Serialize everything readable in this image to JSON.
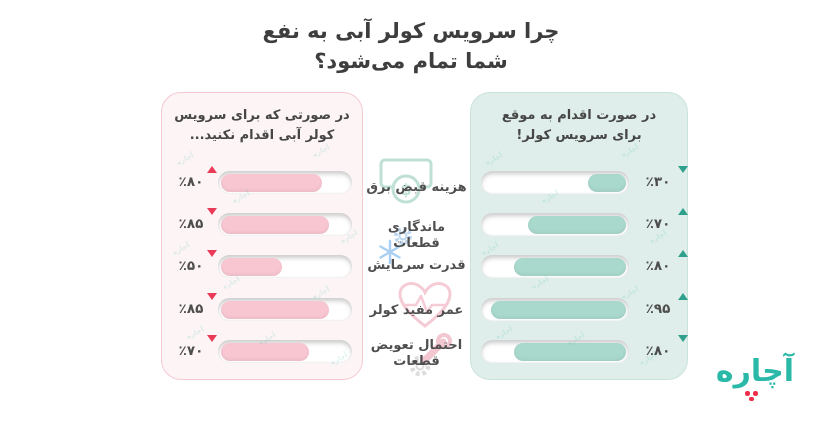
{
  "title": {
    "text": "چرا سرویس کولر آبی به نفع\nشما تمام می‌شود؟"
  },
  "left_panel": {
    "header": "در صورتی که برای سرویس\nکولر آبی اقدام نکنید...",
    "fill_color": "#F8C6D1",
    "background_color": "#FCF4F5",
    "border_color": "#F5C9D3",
    "arrow_color": "#E93A58",
    "rows": [
      {
        "label": "٪۸۰",
        "value": 80,
        "direction": "up"
      },
      {
        "label": "٪۸۵",
        "value": 85,
        "direction": "down"
      },
      {
        "label": "٪۵۰",
        "value": 50,
        "direction": "down"
      },
      {
        "label": "٪۸۵",
        "value": 85,
        "direction": "down"
      },
      {
        "label": "٪۷۰",
        "value": 70,
        "direction": "down"
      }
    ]
  },
  "right_panel": {
    "header": "در صورت اقدام به موقع\nبرای سرویس کولر!",
    "fill_color": "#A9D8CC",
    "background_color": "#DFEEEA",
    "border_color": "#C9E3DB",
    "arrow_color": "#2FA08D",
    "rows": [
      {
        "label": "٪۳۰",
        "value": 30,
        "direction": "down"
      },
      {
        "label": "٪۷۰",
        "value": 70,
        "direction": "up"
      },
      {
        "label": "٪۸۰",
        "value": 80,
        "direction": "up"
      },
      {
        "label": "٪۹۵",
        "value": 95,
        "direction": "up"
      },
      {
        "label": "٪۸۰",
        "value": 80,
        "direction": "down"
      }
    ]
  },
  "categories": [
    "هزینه قبض برق",
    "ماندگاری قطعات",
    "قدرت سرمایش",
    "عمر مفید کولر",
    "احتمال تعویض قطعات"
  ],
  "category_icons": [
    "money-banknote-icon",
    "gear-icon",
    "snowflake-icon",
    "heart-pulse-icon",
    "wrench-gear-icon"
  ],
  "logo": {
    "text": "آچاره",
    "color": "#2AB9A8",
    "dot_color": "#EF2D49"
  },
  "chart_data": {
    "type": "bar",
    "title": "چرا سرویس کولر آبی به نفع شما تمام می‌شود؟",
    "categories": [
      "هزینه قبض برق",
      "ماندگاری قطعات",
      "قدرت سرمایش",
      "عمر مفید کولر",
      "احتمال تعویض قطعات"
    ],
    "series": [
      {
        "name": "در صورتی که برای سرویس کولر آبی اقدام نکنید...",
        "values": [
          80,
          85,
          50,
          85,
          70
        ],
        "trends": [
          "up",
          "down",
          "down",
          "down",
          "down"
        ],
        "color": "#F8C6D1",
        "unit": "%"
      },
      {
        "name": "در صورت اقدام به موقع برای سرویس کولر!",
        "values": [
          30,
          70,
          80,
          95,
          80
        ],
        "trends": [
          "down",
          "up",
          "up",
          "up",
          "down"
        ],
        "color": "#A9D8CC",
        "unit": "%"
      }
    ],
    "value_range": [
      0,
      100
    ],
    "grid": false,
    "legend_position": "panel-headers"
  }
}
